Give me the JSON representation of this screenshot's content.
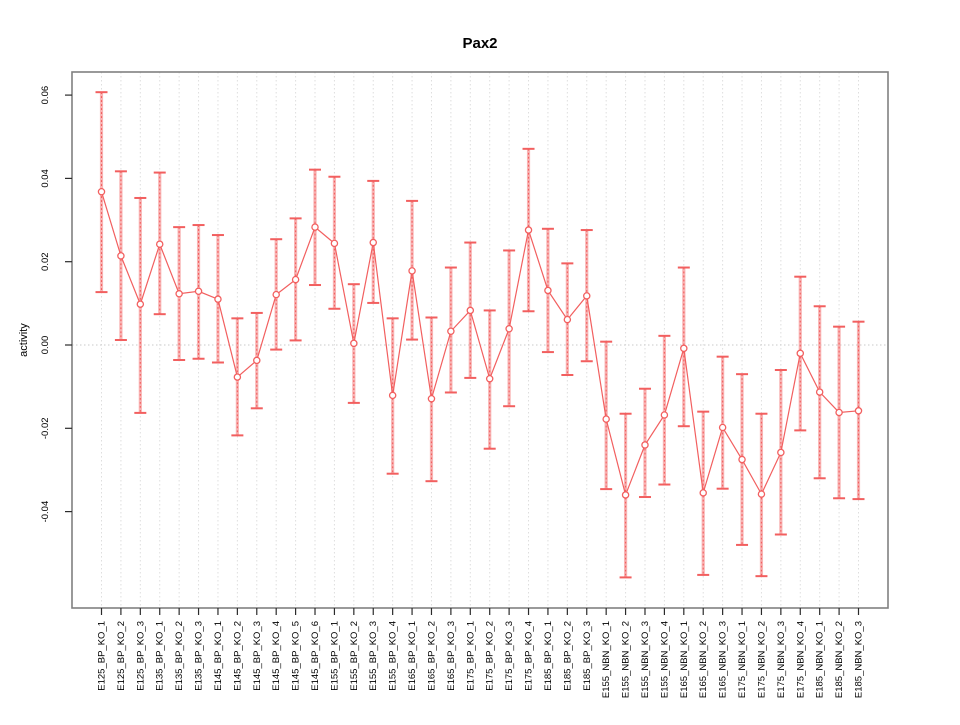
{
  "figure": {
    "background": "#ffffff",
    "colors": {
      "accent": "#F25F5F",
      "band": "#F79B9B",
      "grid": "#DEDEDE",
      "zero_line": "#C9C9C9",
      "border": "#808080",
      "tick": "#2b2b2b",
      "text": "#000000",
      "marker_fill": "#ffffff"
    }
  },
  "chart_data": {
    "type": "line",
    "title": "Pax2",
    "xlabel": "",
    "ylabel": "activity",
    "legend": "none",
    "grid": "vertical-dotted-plus-zero-line",
    "error_bars": true,
    "marker": "open-circle",
    "ylim": [
      -0.063,
      0.0655
    ],
    "yticks": [
      0.06,
      0.04,
      0.02,
      0.0,
      -0.02,
      -0.04
    ],
    "ytick_labels": [
      "0.06",
      "0.04",
      "0.02",
      "0.00",
      "-0.02",
      "-0.04"
    ],
    "categories": [
      "E125_BP_KO_1",
      "E125_BP_KO_2",
      "E125_BP_KO_3",
      "E135_BP_KO_1",
      "E135_BP_KO_2",
      "E135_BP_KO_3",
      "E145_BP_KO_1",
      "E145_BP_KO_2",
      "E145_BP_KO_3",
      "E145_BP_KO_4",
      "E145_BP_KO_5",
      "E145_BP_KO_6",
      "E155_BP_KO_1",
      "E155_BP_KO_2",
      "E155_BP_KO_3",
      "E155_BP_KO_4",
      "E165_BP_KO_1",
      "E165_BP_KO_2",
      "E165_BP_KO_3",
      "E175_BP_KO_1",
      "E175_BP_KO_2",
      "E175_BP_KO_3",
      "E175_BP_KO_4",
      "E185_BP_KO_1",
      "E185_BP_KO_2",
      "E185_BP_KO_3",
      "E155_NBN_KO_1",
      "E155_NBN_KO_2",
      "E155_NBN_KO_3",
      "E155_NBN_KO_4",
      "E165_NBN_KO_1",
      "E165_NBN_KO_2",
      "E165_NBN_KO_3",
      "E175_NBN_KO_1",
      "E175_NBN_KO_2",
      "E175_NBN_KO_3",
      "E175_NBN_KO_4",
      "E185_NBN_KO_1",
      "E185_NBN_KO_2",
      "E185_NBN_KO_3"
    ],
    "values": [
      0.0368,
      0.0214,
      0.0098,
      0.0242,
      0.0123,
      0.0129,
      0.011,
      -0.0077,
      -0.0037,
      0.0121,
      0.0157,
      0.0283,
      0.0244,
      0.0004,
      0.0246,
      -0.0121,
      0.0178,
      -0.0129,
      0.0033,
      0.0083,
      -0.0081,
      0.0039,
      0.0276,
      0.0131,
      0.0061,
      0.0118,
      -0.0178,
      -0.036,
      -0.024,
      -0.0168,
      -0.0008,
      -0.0355,
      -0.0198,
      -0.0275,
      -0.0358,
      -0.0258,
      -0.002,
      -0.0113,
      -0.0162,
      -0.0158
    ],
    "error_low": [
      0.0127,
      0.0012,
      -0.0163,
      0.0074,
      -0.0036,
      -0.0033,
      -0.0042,
      -0.0217,
      -0.0152,
      -0.0011,
      0.0011,
      0.0144,
      0.0087,
      -0.0139,
      0.0101,
      -0.0309,
      0.0013,
      -0.0327,
      -0.0114,
      -0.0079,
      -0.0249,
      -0.0147,
      0.0081,
      -0.0017,
      -0.0072,
      -0.0039,
      -0.0346,
      -0.0558,
      -0.0365,
      -0.0335,
      -0.0195,
      -0.0552,
      -0.0345,
      -0.048,
      -0.0555,
      -0.0455,
      -0.0205,
      -0.032,
      -0.0368,
      -0.037
    ],
    "error_high": [
      0.0607,
      0.0417,
      0.0353,
      0.0414,
      0.0283,
      0.0288,
      0.0264,
      0.0064,
      0.0077,
      0.0254,
      0.0304,
      0.0421,
      0.0404,
      0.0146,
      0.0394,
      0.0064,
      0.0346,
      0.0066,
      0.0186,
      0.0246,
      0.0083,
      0.0227,
      0.0471,
      0.0279,
      0.0196,
      0.0276,
      0.0008,
      -0.0165,
      -0.0105,
      0.0022,
      0.0186,
      -0.016,
      -0.0028,
      -0.007,
      -0.0165,
      -0.006,
      0.0164,
      0.0093,
      0.0044,
      0.0056
    ]
  }
}
